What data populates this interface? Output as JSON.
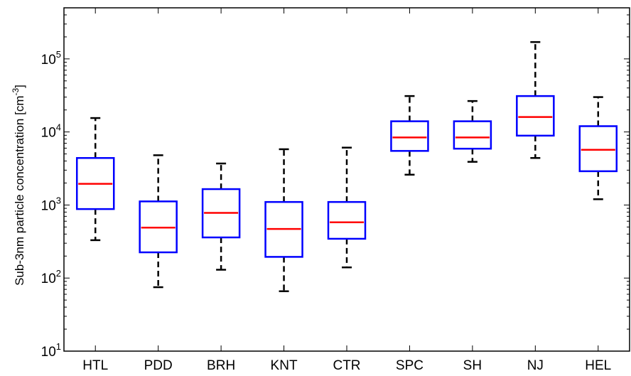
{
  "chart_data": {
    "type": "box",
    "ylabel": "Sub-3nm particle concentration [cm",
    "ylabel_sup": "-3",
    "ylabel_end": "]",
    "yscale": "log",
    "ylim": [
      10,
      500000
    ],
    "yticks": [
      {
        "value": 10,
        "base": "10",
        "exp": "1"
      },
      {
        "value": 100,
        "base": "10",
        "exp": "2"
      },
      {
        "value": 1000,
        "base": "10",
        "exp": "3"
      },
      {
        "value": 10000,
        "base": "10",
        "exp": "4"
      },
      {
        "value": 100000,
        "base": "10",
        "exp": "5"
      }
    ],
    "grid": false,
    "box_color": "#0000ff",
    "median_color": "#ff0000",
    "whisker_color": "#000000",
    "categories": [
      "HTL",
      "PDD",
      "BRH",
      "KNT",
      "CTR",
      "SPC",
      "SH",
      "NJ",
      "HEL"
    ],
    "boxes": [
      {
        "min": 330,
        "q1": 880,
        "median": 1950,
        "q3": 4400,
        "max": 15500
      },
      {
        "min": 75,
        "q1": 225,
        "median": 490,
        "q3": 1120,
        "max": 4800
      },
      {
        "min": 130,
        "q1": 360,
        "median": 780,
        "q3": 1650,
        "max": 3700
      },
      {
        "min": 66,
        "q1": 195,
        "median": 470,
        "q3": 1100,
        "max": 5800
      },
      {
        "min": 140,
        "q1": 345,
        "median": 580,
        "q3": 1100,
        "max": 6100
      },
      {
        "min": 2600,
        "q1": 5500,
        "median": 8400,
        "q3": 14000,
        "max": 31000
      },
      {
        "min": 3900,
        "q1": 5900,
        "median": 8400,
        "q3": 14000,
        "max": 26500
      },
      {
        "min": 4400,
        "q1": 8900,
        "median": 16000,
        "q3": 31000,
        "max": 170000
      },
      {
        "min": 1200,
        "q1": 2900,
        "median": 5700,
        "q3": 12000,
        "max": 30000
      }
    ]
  }
}
